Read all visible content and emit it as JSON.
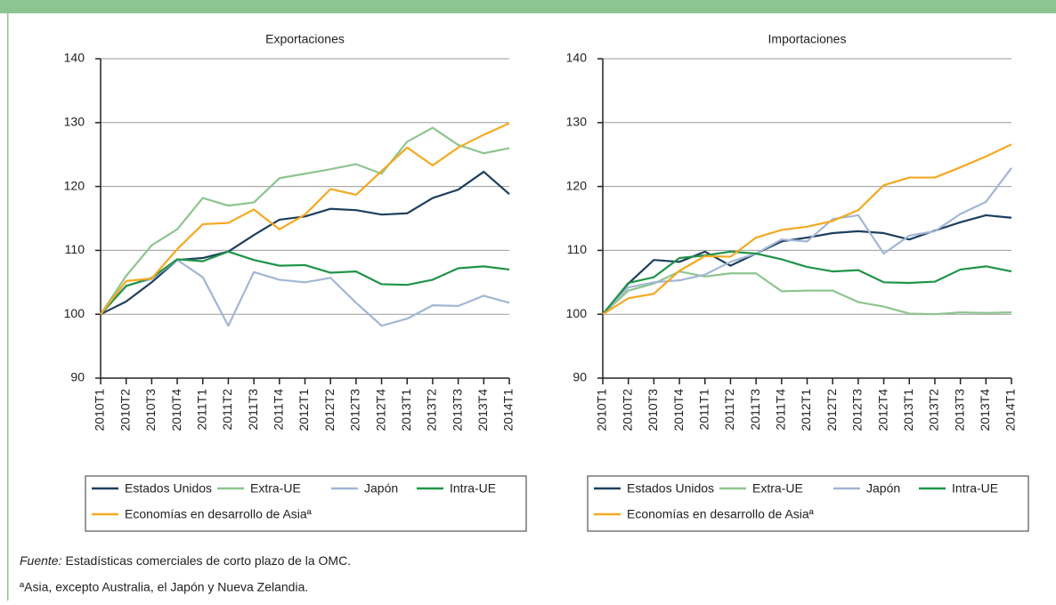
{
  "chart_data": [
    {
      "type": "line",
      "title": "Exportaciones",
      "categories": [
        "2010T1",
        "2010T2",
        "2010T3",
        "2010T4",
        "2011T1",
        "2011T2",
        "2011T3",
        "2011T4",
        "2012T1",
        "2012T2",
        "2012T3",
        "2012T4",
        "2013T1",
        "2013T2",
        "2013T3",
        "2013T4",
        "2014T1"
      ],
      "ylim": [
        90,
        140
      ],
      "yticks": [
        90,
        100,
        110,
        120,
        130,
        140
      ],
      "grid": true,
      "series": [
        {
          "name": "Estados Unidos",
          "color": "#1d3f5e",
          "values": [
            100,
            102,
            105,
            108.5,
            108.8,
            109.8,
            112.4,
            114.8,
            115.3,
            116.5,
            116.3,
            115.6,
            115.8,
            118.2,
            119.5,
            122.3,
            118.8
          ]
        },
        {
          "name": "Extra-UE",
          "color": "#8dc58f",
          "values": [
            100,
            106,
            110.8,
            113.3,
            118.2,
            117,
            117.5,
            121.3,
            122,
            122.7,
            123.5,
            122,
            127,
            129.2,
            126.5,
            125.2,
            126
          ]
        },
        {
          "name": "Japón",
          "color": "#a3b6d4",
          "values": [
            100,
            104.5,
            105.5,
            108.5,
            105.8,
            98.2,
            106.6,
            105.4,
            105,
            105.7,
            101.8,
            98.2,
            99.3,
            101.4,
            101.3,
            102.9,
            101.8
          ]
        },
        {
          "name": "Intra-UE",
          "color": "#1f9448",
          "values": [
            100,
            104.4,
            105.7,
            108.6,
            108.3,
            109.8,
            108.5,
            107.6,
            107.7,
            106.5,
            106.7,
            104.7,
            104.6,
            105.4,
            107.2,
            107.5,
            107
          ]
        },
        {
          "name": "Economías en desarrollo de Asiaª",
          "color": "#f4a922",
          "values": [
            100,
            105.2,
            105.6,
            110.2,
            114.1,
            114.3,
            116.4,
            113.3,
            115.6,
            119.6,
            118.7,
            122.4,
            126.1,
            123.3,
            126.1,
            128.1,
            129.9
          ]
        }
      ]
    },
    {
      "type": "line",
      "title": "Importaciones",
      "categories": [
        "2010T1",
        "2010T2",
        "2010T3",
        "2010T4",
        "2011T1",
        "2011T2",
        "2011T3",
        "2011T4",
        "2012T1",
        "2012T2",
        "2012T3",
        "2012T4",
        "2013T1",
        "2013T2",
        "2013T3",
        "2013T4",
        "2014T1"
      ],
      "ylim": [
        90,
        140
      ],
      "yticks": [
        90,
        100,
        110,
        120,
        130,
        140
      ],
      "grid": true,
      "series": [
        {
          "name": "Estados Unidos",
          "color": "#1d3f5e",
          "values": [
            100,
            104.8,
            108.5,
            108.2,
            109.8,
            107.6,
            109.5,
            111.4,
            112,
            112.7,
            113,
            112.7,
            111.7,
            113.1,
            114.4,
            115.5,
            115.1
          ]
        },
        {
          "name": "Extra-UE",
          "color": "#8dc58f",
          "values": [
            100,
            103.7,
            104.8,
            106.7,
            105.9,
            106.4,
            106.4,
            103.6,
            103.7,
            103.7,
            101.9,
            101.2,
            100.1,
            100,
            100.3,
            100.2,
            100.3
          ]
        },
        {
          "name": "Japón",
          "color": "#a3b6d4",
          "values": [
            100,
            104.2,
            105,
            105.3,
            106.2,
            108.2,
            109.5,
            111.7,
            111.4,
            114.9,
            115.5,
            109.5,
            112.3,
            113,
            115.7,
            117.6,
            122.9
          ]
        },
        {
          "name": "Intra-UE",
          "color": "#1f9448",
          "values": [
            100,
            104.9,
            105.8,
            108.8,
            109.2,
            109.8,
            109.5,
            108.6,
            107.4,
            106.7,
            106.9,
            105,
            104.9,
            105.1,
            107,
            107.5,
            106.7
          ]
        },
        {
          "name": "Economías en desarrollo de Asiaª",
          "color": "#f4a922",
          "values": [
            100,
            102.5,
            103.2,
            106.8,
            109.1,
            109,
            112,
            113.2,
            113.7,
            114.6,
            116.3,
            120.2,
            121.4,
            121.4,
            123,
            124.7,
            126.6
          ]
        }
      ]
    }
  ],
  "source_label": "Fuente:",
  "source": "Estadísticas comerciales de corto plazo de la OMC.",
  "footnote": "ªAsia, excepto Australia, el Japón y Nueva Zelandia."
}
